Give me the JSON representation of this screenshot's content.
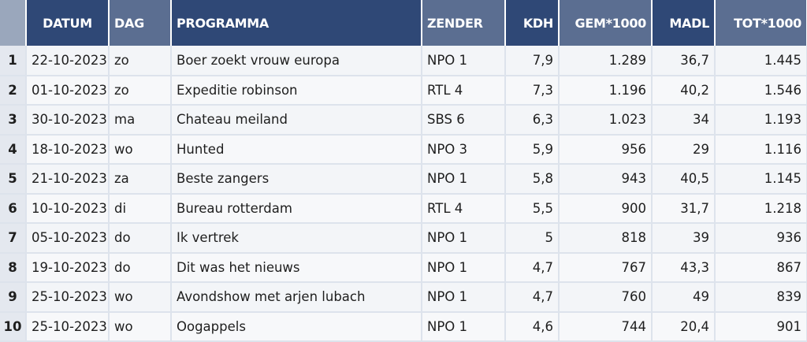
{
  "table": {
    "headers": {
      "idx": "",
      "datum": "DATUM",
      "dag": "DAG",
      "programma": "PROGRAMMA",
      "zender": "ZENDER",
      "kdh": "KDH",
      "gem": "GEM*1000",
      "madl": "MADL",
      "tot": "TOT*1000"
    },
    "rows": [
      {
        "idx": "1",
        "datum": "22-10-2023",
        "dag": "zo",
        "programma": "Boer zoekt vrouw europa",
        "zender": "NPO 1",
        "kdh": "7,9",
        "gem": "1.289",
        "madl": "36,7",
        "tot": "1.445"
      },
      {
        "idx": "2",
        "datum": "01-10-2023",
        "dag": "zo",
        "programma": "Expeditie robinson",
        "zender": "RTL 4",
        "kdh": "7,3",
        "gem": "1.196",
        "madl": "40,2",
        "tot": "1.546"
      },
      {
        "idx": "3",
        "datum": "30-10-2023",
        "dag": "ma",
        "programma": "Chateau meiland",
        "zender": "SBS 6",
        "kdh": "6,3",
        "gem": "1.023",
        "madl": "34",
        "tot": "1.193"
      },
      {
        "idx": "4",
        "datum": "18-10-2023",
        "dag": "wo",
        "programma": "Hunted",
        "zender": "NPO 3",
        "kdh": "5,9",
        "gem": "956",
        "madl": "29",
        "tot": "1.116"
      },
      {
        "idx": "5",
        "datum": "21-10-2023",
        "dag": "za",
        "programma": "Beste zangers",
        "zender": "NPO 1",
        "kdh": "5,8",
        "gem": "943",
        "madl": "40,5",
        "tot": "1.145"
      },
      {
        "idx": "6",
        "datum": "10-10-2023",
        "dag": "di",
        "programma": "Bureau rotterdam",
        "zender": "RTL 4",
        "kdh": "5,5",
        "gem": "900",
        "madl": "31,7",
        "tot": "1.218"
      },
      {
        "idx": "7",
        "datum": "05-10-2023",
        "dag": "do",
        "programma": "Ik vertrek",
        "zender": "NPO 1",
        "kdh": "5",
        "gem": "818",
        "madl": "39",
        "tot": "936"
      },
      {
        "idx": "8",
        "datum": "19-10-2023",
        "dag": "do",
        "programma": "Dit was het nieuws",
        "zender": "NPO 1",
        "kdh": "4,7",
        "gem": "767",
        "madl": "43,3",
        "tot": "867"
      },
      {
        "idx": "9",
        "datum": "25-10-2023",
        "dag": "wo",
        "programma": "Avondshow met arjen lubach",
        "zender": "NPO 1",
        "kdh": "4,7",
        "gem": "760",
        "madl": "49",
        "tot": "839"
      },
      {
        "idx": "10",
        "datum": "25-10-2023",
        "dag": "wo",
        "programma": "Oogappels",
        "zender": "NPO 1",
        "kdh": "4,6",
        "gem": "744",
        "madl": "20,4",
        "tot": "901"
      }
    ]
  }
}
